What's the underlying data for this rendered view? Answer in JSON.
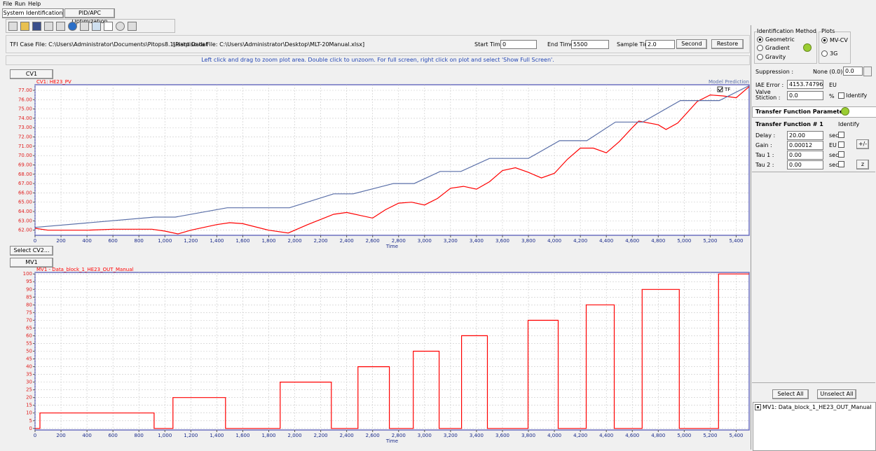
{
  "menu": [
    "File",
    "Run",
    "Help"
  ],
  "tabs": [
    "System Identification",
    "PID/APC Optimization"
  ],
  "file_row": {
    "case_file": "TFI Case File: C:\\Users\\Administrator\\Documents\\Pitops8.1\\lastpiso.dat",
    "plant_file": "[Plant Data File: C:\\Users\\Administrator\\Desktop\\MLT-20Manual.xlsx]",
    "start_label": "Start Time :",
    "start_value": "0",
    "end_label": "End Time :",
    "end_value": "5500",
    "sample_label": "Sample Time :",
    "sample_value": "2.0",
    "unit_button": "Second",
    "restore_button": "Restore"
  },
  "instruction": "Left click and drag to zoom plot area. Double click to unzoom. For full screen, right click on plot and select 'Show Full Screen'.",
  "buttons": {
    "cv": "CV1",
    "select_cv": "Select CV2...",
    "mv": "MV1"
  },
  "chart_data": [
    {
      "type": "line",
      "xlabel": "Time",
      "legend_label": "TF",
      "xlim": [
        0,
        5500
      ],
      "ylim": [
        61.45,
        77.6
      ],
      "xticks": [
        0,
        200,
        400,
        600,
        800,
        {
          "value": 1000,
          "label": "1,000"
        },
        {
          "value": 1200,
          "label": "1,200"
        },
        {
          "value": 1400,
          "label": "1,400"
        },
        {
          "value": 1600,
          "label": "1,600"
        },
        {
          "value": 1800,
          "label": "1,800"
        },
        {
          "value": 2000,
          "label": "2,000"
        },
        {
          "value": 2200,
          "label": "2,200"
        },
        {
          "value": 2400,
          "label": "2,400"
        },
        {
          "value": 2600,
          "label": "2,600"
        },
        {
          "value": 2800,
          "label": "2,800"
        },
        {
          "value": 3000,
          "label": "3,000"
        },
        {
          "value": 3200,
          "label": "3,200"
        },
        {
          "value": 3400,
          "label": "3,400"
        },
        {
          "value": 3600,
          "label": "3,600"
        },
        {
          "value": 3800,
          "label": "3,800"
        },
        {
          "value": 4000,
          "label": "4,000"
        },
        {
          "value": 4200,
          "label": "4,200"
        },
        {
          "value": 4400,
          "label": "4,400"
        },
        {
          "value": 4600,
          "label": "4,600"
        },
        {
          "value": 4800,
          "label": "4,800"
        },
        {
          "value": 5000,
          "label": "5,000"
        },
        {
          "value": 5200,
          "label": "5,200"
        },
        {
          "value": 5400,
          "label": "5,400"
        }
      ],
      "yticks": [
        {
          "value": 62,
          "label": "62.00"
        },
        {
          "value": 63,
          "label": "63.00"
        },
        {
          "value": 64,
          "label": "64.00"
        },
        {
          "value": 65,
          "label": "65.00"
        },
        {
          "value": 66,
          "label": "66.00"
        },
        {
          "value": 67,
          "label": "67.00"
        },
        {
          "value": 68,
          "label": "68.00"
        },
        {
          "value": 69,
          "label": "69.00"
        },
        {
          "value": 70,
          "label": "70.00"
        },
        {
          "value": 71,
          "label": "71.00"
        },
        {
          "value": 72,
          "label": "72.00"
        },
        {
          "value": 73,
          "label": "73.00"
        },
        {
          "value": 74,
          "label": "74.00"
        },
        {
          "value": 75,
          "label": "75.00"
        },
        {
          "value": 76,
          "label": "76.00"
        },
        {
          "value": 77,
          "label": "77.00"
        }
      ],
      "grid": true,
      "series": [
        {
          "name": "CV1: HE23_PV",
          "color": "#ff0000",
          "x": [
            0,
            100,
            400,
            600,
            900,
            1000,
            1100,
            1200,
            1400,
            1500,
            1600,
            1800,
            1950,
            2100,
            2300,
            2400,
            2500,
            2600,
            2700,
            2800,
            2900,
            3000,
            3100,
            3200,
            3300,
            3400,
            3500,
            3600,
            3700,
            3800,
            3900,
            4000,
            4100,
            4200,
            4300,
            4400,
            4500,
            4600,
            4650,
            4800,
            4860,
            4950,
            5100,
            5200,
            5300,
            5400,
            5500
          ],
          "values": [
            62.2,
            62.0,
            62.0,
            62.1,
            62.1,
            61.9,
            61.6,
            62.0,
            62.6,
            62.8,
            62.7,
            62.0,
            61.7,
            62.6,
            63.7,
            63.9,
            63.6,
            63.3,
            64.2,
            64.9,
            65.0,
            64.7,
            65.4,
            66.5,
            66.7,
            66.4,
            67.2,
            68.4,
            68.7,
            68.2,
            67.6,
            68.1,
            69.6,
            70.8,
            70.8,
            70.3,
            71.5,
            73.0,
            73.7,
            73.3,
            72.8,
            73.5,
            75.8,
            76.5,
            76.4,
            76.2,
            77.4
          ]
        },
        {
          "name": "Model Prediction",
          "color": "#5a6fa8",
          "x": [
            0,
            920,
            1080,
            1480,
            1960,
            2300,
            2450,
            2760,
            2920,
            3120,
            3280,
            3500,
            3800,
            4040,
            4250,
            4470,
            4680,
            4970,
            5270,
            5500
          ],
          "values": [
            62.3,
            63.4,
            63.4,
            64.4,
            64.4,
            65.9,
            65.9,
            67.0,
            67.0,
            68.3,
            68.3,
            69.7,
            69.7,
            71.6,
            71.6,
            73.6,
            73.6,
            75.9,
            75.9,
            77.5
          ]
        }
      ]
    },
    {
      "type": "line",
      "xlabel": "Time",
      "xlim": [
        0,
        5500
      ],
      "ylim": [
        -1,
        101
      ],
      "xticks": [
        0,
        200,
        400,
        600,
        800,
        {
          "value": 1000,
          "label": "1,000"
        },
        {
          "value": 1200,
          "label": "1,200"
        },
        {
          "value": 1400,
          "label": "1,400"
        },
        {
          "value": 1600,
          "label": "1,600"
        },
        {
          "value": 1800,
          "label": "1,800"
        },
        {
          "value": 2000,
          "label": "2,000"
        },
        {
          "value": 2200,
          "label": "2,200"
        },
        {
          "value": 2400,
          "label": "2,400"
        },
        {
          "value": 2600,
          "label": "2,600"
        },
        {
          "value": 2800,
          "label": "2,800"
        },
        {
          "value": 3000,
          "label": "3,000"
        },
        {
          "value": 3200,
          "label": "3,200"
        },
        {
          "value": 3400,
          "label": "3,400"
        },
        {
          "value": 3600,
          "label": "3,600"
        },
        {
          "value": 3800,
          "label": "3,800"
        },
        {
          "value": 4000,
          "label": "4,000"
        },
        {
          "value": 4200,
          "label": "4,200"
        },
        {
          "value": 4400,
          "label": "4,400"
        },
        {
          "value": 4600,
          "label": "4,600"
        },
        {
          "value": 4800,
          "label": "4,800"
        },
        {
          "value": 5000,
          "label": "5,000"
        },
        {
          "value": 5200,
          "label": "5,200"
        },
        {
          "value": 5400,
          "label": "5,400"
        }
      ],
      "yticks": [
        0,
        5,
        10,
        15,
        20,
        25,
        30,
        35,
        40,
        45,
        50,
        55,
        60,
        65,
        70,
        75,
        80,
        85,
        90,
        95,
        100
      ],
      "grid": true,
      "series": [
        {
          "name": "MV1 - Data_block_1_HE23_OUT_Manual",
          "color": "#ff0000",
          "x": [
            0,
            38,
            38,
            917,
            917,
            1062,
            1062,
            1467,
            1467,
            1888,
            1888,
            2282,
            2282,
            2487,
            2487,
            2729,
            2729,
            2913,
            2913,
            3112,
            3112,
            3285,
            3285,
            3484,
            3484,
            3797,
            3797,
            4029,
            4029,
            4245,
            4245,
            4461,
            4461,
            4676,
            4676,
            4962,
            4962,
            5264,
            5264,
            5500
          ],
          "values": [
            0,
            0,
            10,
            10,
            0,
            0,
            20,
            20,
            0,
            0,
            30,
            30,
            0,
            0,
            40,
            40,
            0,
            0,
            50,
            50,
            0,
            0,
            60,
            60,
            0,
            0,
            70,
            70,
            0,
            0,
            80,
            80,
            0,
            0,
            90,
            90,
            0,
            0,
            100,
            100
          ]
        }
      ]
    }
  ],
  "panel": {
    "id_method_title": "Identification Method",
    "methods": [
      "Geometric",
      "Gradient",
      "Gravity"
    ],
    "plots_title": "Plots",
    "plots": [
      "MV-CV",
      "3G"
    ],
    "suppression_label": "Suppression :",
    "suppression_text": "None (0.0)",
    "suppression_value": "0.0",
    "iae_label": "IAE Error :",
    "iae_value": "4153.74796",
    "iae_unit": "EU",
    "stiction_label": "Valve Stiction :",
    "stiction_value": "0.0",
    "stiction_unit": "%",
    "stiction_identify": "Identify",
    "tf_header": "Transfer Function Parameters",
    "tf_title": "Transfer Function # 1",
    "tf_identify": "Identify",
    "params": [
      {
        "label": "Delay :",
        "value": "20.00",
        "unit": "sec"
      },
      {
        "label": "Gain :",
        "value": "0.00012",
        "unit": "EU"
      },
      {
        "label": "Tau 1 :",
        "value": "0.00",
        "unit": "sec"
      },
      {
        "label": "Tau 2 :",
        "value": "0.00",
        "unit": "sec"
      }
    ],
    "plusminus": "+/-",
    "z": "z",
    "select_all": "Select All",
    "unselect_all": "Unselect All",
    "list_item": "MV1: Data_block_1_HE23_OUT_Manual"
  }
}
